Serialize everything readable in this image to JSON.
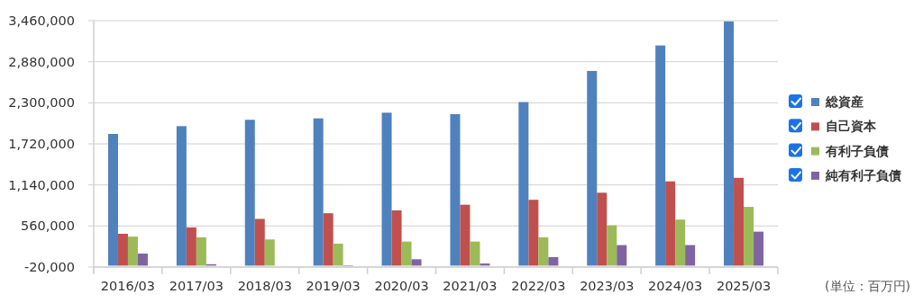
{
  "chart_data": {
    "type": "bar",
    "categories": [
      "2016/03",
      "2017/03",
      "2018/03",
      "2019/03",
      "2020/03",
      "2021/03",
      "2022/03",
      "2023/03",
      "2024/03",
      "2025/03"
    ],
    "series": [
      {
        "name": "総資産",
        "color": "#4f81bd",
        "values": [
          1860000,
          1970000,
          2060000,
          2080000,
          2160000,
          2140000,
          2310000,
          2750000,
          3110000,
          3450000
        ]
      },
      {
        "name": "自己資本",
        "color": "#c0504d",
        "values": [
          450000,
          540000,
          660000,
          740000,
          780000,
          860000,
          930000,
          1030000,
          1190000,
          1240000
        ]
      },
      {
        "name": "有利子負債",
        "color": "#9bbb59",
        "values": [
          410000,
          400000,
          370000,
          310000,
          340000,
          340000,
          400000,
          570000,
          650000,
          830000
        ]
      },
      {
        "name": "純有利子負債",
        "color": "#8064a2",
        "values": [
          170000,
          20000,
          null,
          0,
          90000,
          30000,
          120000,
          290000,
          290000,
          480000
        ]
      }
    ],
    "ylim": [
      -20000,
      3460000
    ],
    "yticks": [
      {
        "value": -20000,
        "label": "-20,000"
      },
      {
        "value": 560000,
        "label": "560,000"
      },
      {
        "value": 1140000,
        "label": "1,140,000"
      },
      {
        "value": 1720000,
        "label": "1,720,000"
      },
      {
        "value": 2300000,
        "label": "2,300,000"
      },
      {
        "value": 2880000,
        "label": "2,880,000"
      },
      {
        "value": 3460000,
        "label": "3,460,000"
      }
    ],
    "grid": "y",
    "legend": "right",
    "annotations": [
      "(単位：百万円)"
    ]
  }
}
